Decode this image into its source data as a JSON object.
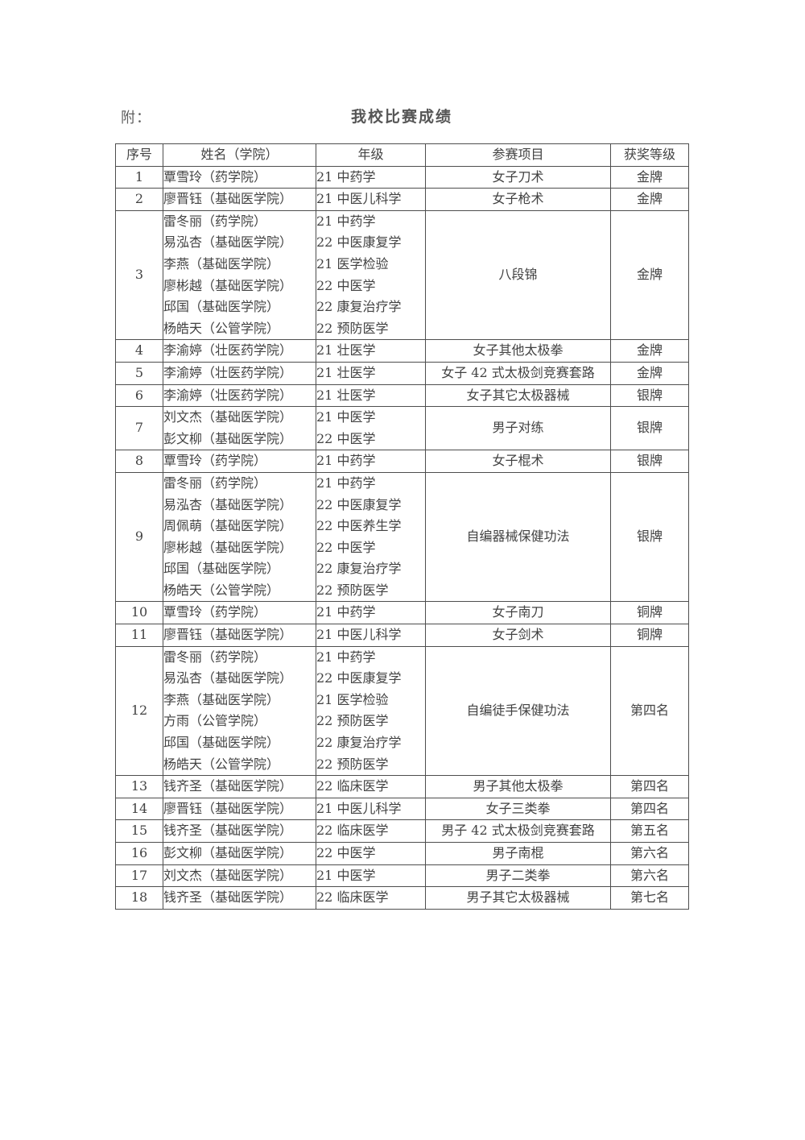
{
  "page": {
    "prefix": "附：",
    "title": "我校比赛成绩"
  },
  "table": {
    "headers": [
      "序号",
      "姓名（学院）",
      "年级",
      "参赛项目",
      "获奖等级"
    ],
    "rows": [
      {
        "no": "1",
        "names": [
          "覃雪玲（药学院）"
        ],
        "grades": [
          "21 中药学"
        ],
        "event": "女子刀术",
        "award": "金牌"
      },
      {
        "no": "2",
        "names": [
          "廖晋钰（基础医学院）"
        ],
        "grades": [
          "21 中医儿科学"
        ],
        "event": "女子枪术",
        "award": "金牌"
      },
      {
        "no": "3",
        "names": [
          "雷冬丽（药学院）",
          "易泓杏（基础医学院）",
          "李燕（基础医学院）",
          "廖彬越（基础医学院）",
          "邱国（基础医学院）",
          "杨皓天（公管学院）"
        ],
        "grades": [
          "21 中药学",
          "22 中医康复学",
          "21 医学检验",
          "22 中医学",
          "22 康复治疗学",
          "22 预防医学"
        ],
        "event": "八段锦",
        "award": "金牌"
      },
      {
        "no": "4",
        "names": [
          "李渝婷（壮医药学院）"
        ],
        "grades": [
          "21 壮医学"
        ],
        "event": "女子其他太极拳",
        "award": "金牌"
      },
      {
        "no": "5",
        "names": [
          "李渝婷（壮医药学院）"
        ],
        "grades": [
          "21 壮医学"
        ],
        "event": "女子 42 式太极剑竞赛套路",
        "award": "金牌"
      },
      {
        "no": "6",
        "names": [
          "李渝婷（壮医药学院）"
        ],
        "grades": [
          "21 壮医学"
        ],
        "event": "女子其它太极器械",
        "award": "银牌"
      },
      {
        "no": "7",
        "names": [
          "刘文杰（基础医学院）",
          "彭文柳（基础医学院）"
        ],
        "grades": [
          "21 中医学",
          "22 中医学"
        ],
        "event": "男子对练",
        "award": "银牌"
      },
      {
        "no": "8",
        "names": [
          "覃雪玲（药学院）"
        ],
        "grades": [
          "21 中药学"
        ],
        "event": "女子棍术",
        "award": "银牌"
      },
      {
        "no": "9",
        "names": [
          "雷冬丽（药学院）",
          "易泓杏（基础医学院）",
          "周佩萌（基础医学院）",
          "廖彬越（基础医学院）",
          "邱国（基础医学院）",
          "杨皓天（公管学院）"
        ],
        "grades": [
          "21 中药学",
          "22 中医康复学",
          "22 中医养生学",
          "22 中医学",
          "22 康复治疗学",
          "22 预防医学"
        ],
        "event": "自编器械保健功法",
        "award": "银牌"
      },
      {
        "no": "10",
        "names": [
          "覃雪玲（药学院）"
        ],
        "grades": [
          "21 中药学"
        ],
        "event": "女子南刀",
        "award": "铜牌"
      },
      {
        "no": "11",
        "names": [
          "廖晋钰（基础医学院）"
        ],
        "grades": [
          "21 中医儿科学"
        ],
        "event": "女子剑术",
        "award": "铜牌"
      },
      {
        "no": "12",
        "names": [
          "雷冬丽（药学院）",
          "易泓杏（基础医学院）",
          "李燕（基础医学院）",
          "方雨（公管学院）",
          "邱国（基础医学院）",
          "杨皓天（公管学院）"
        ],
        "grades": [
          "21 中药学",
          "22 中医康复学",
          "21 医学检验",
          "22 预防医学",
          "22 康复治疗学",
          "22 预防医学"
        ],
        "event": "自编徒手保健功法",
        "award": "第四名"
      },
      {
        "no": "13",
        "names": [
          "钱齐圣（基础医学院）"
        ],
        "grades": [
          "22 临床医学"
        ],
        "event": "男子其他太极拳",
        "award": "第四名"
      },
      {
        "no": "14",
        "names": [
          "廖晋钰（基础医学院）"
        ],
        "grades": [
          "21 中医儿科学"
        ],
        "event": "女子三类拳",
        "award": "第四名"
      },
      {
        "no": "15",
        "names": [
          "钱齐圣（基础医学院）"
        ],
        "grades": [
          "22 临床医学"
        ],
        "event": "男子 42 式太极剑竞赛套路",
        "award": "第五名"
      },
      {
        "no": "16",
        "names": [
          "彭文柳（基础医学院）"
        ],
        "grades": [
          "22 中医学"
        ],
        "event": "男子南棍",
        "award": "第六名"
      },
      {
        "no": "17",
        "names": [
          "刘文杰（基础医学院）"
        ],
        "grades": [
          "21 中医学"
        ],
        "event": "男子二类拳",
        "award": "第六名"
      },
      {
        "no": "18",
        "names": [
          "钱齐圣（基础医学院）"
        ],
        "grades": [
          "22 临床医学"
        ],
        "event": "男子其它太极器械",
        "award": "第七名"
      }
    ]
  }
}
